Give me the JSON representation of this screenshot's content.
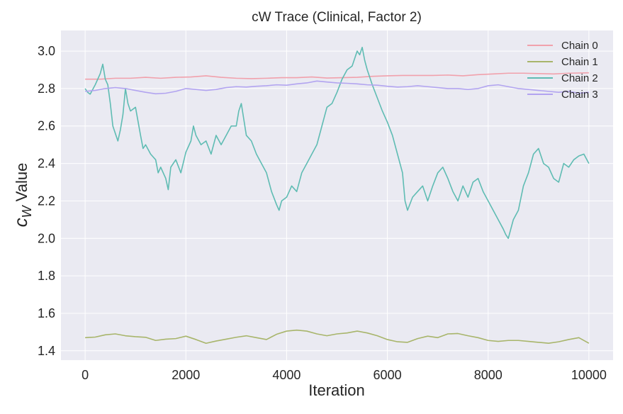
{
  "chart_data": {
    "type": "line",
    "title": "cW Trace (Clinical, Factor 2)",
    "xlabel": "Iteration",
    "ylabel_math": "c",
    "ylabel_sub": "W",
    "ylabel_text": "Value",
    "xlim": [
      -480,
      10480
    ],
    "ylim": [
      1.35,
      3.11
    ],
    "xticks": [
      0,
      2000,
      4000,
      6000,
      8000,
      10000
    ],
    "yticks": [
      1.4,
      1.6,
      1.8,
      2.0,
      2.2,
      2.4,
      2.6,
      2.8,
      3.0
    ],
    "xtick_labels": [
      "0",
      "2000",
      "4000",
      "6000",
      "8000",
      "10000"
    ],
    "ytick_labels": [
      "1.4",
      "1.6",
      "1.8",
      "2.0",
      "2.2",
      "2.4",
      "2.6",
      "2.8",
      "3.0"
    ],
    "grid": true,
    "legend_position": "top-right",
    "colors": {
      "plot_background": "#eaeaf2",
      "grid": "#ffffff"
    },
    "series": [
      {
        "name": "Chain 0",
        "color": "#f1a1ac",
        "x": [
          0,
          300,
          600,
          900,
          1200,
          1500,
          1800,
          2100,
          2400,
          2700,
          3000,
          3300,
          3600,
          3900,
          4200,
          4500,
          4800,
          5100,
          5400,
          5700,
          6000,
          6300,
          6600,
          6900,
          7200,
          7500,
          7800,
          8100,
          8400,
          8700,
          9000,
          9300,
          9600,
          10000
        ],
        "values": [
          2.85,
          2.85,
          2.855,
          2.855,
          2.86,
          2.855,
          2.86,
          2.862,
          2.868,
          2.86,
          2.855,
          2.853,
          2.855,
          2.858,
          2.858,
          2.862,
          2.856,
          2.858,
          2.86,
          2.865,
          2.868,
          2.87,
          2.87,
          2.87,
          2.872,
          2.868,
          2.874,
          2.878,
          2.882,
          2.882,
          2.88,
          2.878,
          2.882,
          2.884
        ]
      },
      {
        "name": "Chain 1",
        "color": "#a8b56b",
        "x": [
          0,
          200,
          400,
          600,
          800,
          1000,
          1200,
          1400,
          1600,
          1800,
          2000,
          2200,
          2400,
          2600,
          2800,
          3000,
          3200,
          3400,
          3600,
          3800,
          4000,
          4200,
          4400,
          4600,
          4800,
          5000,
          5200,
          5400,
          5600,
          5800,
          6000,
          6200,
          6400,
          6600,
          6800,
          7000,
          7200,
          7400,
          7600,
          7800,
          8000,
          8200,
          8400,
          8600,
          8800,
          9000,
          9200,
          9400,
          9600,
          9800,
          10000
        ],
        "values": [
          1.47,
          1.473,
          1.485,
          1.49,
          1.48,
          1.475,
          1.472,
          1.455,
          1.462,
          1.465,
          1.478,
          1.46,
          1.44,
          1.452,
          1.462,
          1.472,
          1.48,
          1.47,
          1.46,
          1.488,
          1.505,
          1.51,
          1.505,
          1.49,
          1.48,
          1.49,
          1.495,
          1.505,
          1.495,
          1.48,
          1.46,
          1.448,
          1.445,
          1.465,
          1.478,
          1.47,
          1.49,
          1.492,
          1.48,
          1.47,
          1.455,
          1.45,
          1.455,
          1.455,
          1.45,
          1.445,
          1.44,
          1.448,
          1.46,
          1.47,
          1.44
        ]
      },
      {
        "name": "Chain 2",
        "color": "#5fbcb3",
        "x": [
          0,
          50,
          100,
          200,
          300,
          350,
          400,
          450,
          500,
          550,
          600,
          650,
          700,
          750,
          800,
          850,
          900,
          1000,
          1100,
          1150,
          1200,
          1300,
          1400,
          1450,
          1500,
          1600,
          1650,
          1700,
          1800,
          1900,
          2000,
          2100,
          2150,
          2200,
          2300,
          2400,
          2500,
          2600,
          2700,
          2800,
          2900,
          3000,
          3050,
          3100,
          3200,
          3300,
          3400,
          3500,
          3600,
          3700,
          3800,
          3850,
          3900,
          4000,
          4100,
          4200,
          4300,
          4400,
          4500,
          4600,
          4700,
          4800,
          4900,
          5000,
          5100,
          5200,
          5300,
          5350,
          5400,
          5450,
          5500,
          5550,
          5600,
          5700,
          5800,
          5900,
          6000,
          6100,
          6200,
          6300,
          6350,
          6400,
          6500,
          6600,
          6700,
          6800,
          6900,
          7000,
          7100,
          7200,
          7300,
          7400,
          7500,
          7600,
          7700,
          7800,
          7900,
          8000,
          8100,
          8200,
          8300,
          8350,
          8400,
          8450,
          8500,
          8600,
          8700,
          8800,
          8900,
          9000,
          9100,
          9200,
          9300,
          9400,
          9500,
          9600,
          9700,
          9800,
          9900,
          10000
        ],
        "values": [
          2.8,
          2.78,
          2.77,
          2.82,
          2.88,
          2.93,
          2.85,
          2.82,
          2.72,
          2.6,
          2.56,
          2.52,
          2.58,
          2.66,
          2.8,
          2.72,
          2.68,
          2.7,
          2.55,
          2.48,
          2.5,
          2.45,
          2.42,
          2.35,
          2.38,
          2.32,
          2.26,
          2.38,
          2.42,
          2.35,
          2.46,
          2.52,
          2.6,
          2.55,
          2.5,
          2.52,
          2.45,
          2.55,
          2.5,
          2.55,
          2.6,
          2.6,
          2.68,
          2.72,
          2.55,
          2.52,
          2.45,
          2.4,
          2.35,
          2.25,
          2.18,
          2.15,
          2.2,
          2.22,
          2.28,
          2.25,
          2.35,
          2.4,
          2.45,
          2.5,
          2.6,
          2.7,
          2.72,
          2.78,
          2.85,
          2.9,
          2.92,
          2.96,
          3.0,
          2.98,
          3.02,
          2.95,
          2.9,
          2.82,
          2.75,
          2.68,
          2.62,
          2.55,
          2.45,
          2.35,
          2.2,
          2.15,
          2.22,
          2.25,
          2.28,
          2.2,
          2.28,
          2.35,
          2.38,
          2.32,
          2.25,
          2.2,
          2.28,
          2.22,
          2.3,
          2.32,
          2.25,
          2.2,
          2.15,
          2.1,
          2.05,
          2.02,
          2.0,
          2.05,
          2.1,
          2.15,
          2.28,
          2.35,
          2.45,
          2.48,
          2.4,
          2.38,
          2.32,
          2.3,
          2.4,
          2.38,
          2.42,
          2.44,
          2.45,
          2.4
        ]
      },
      {
        "name": "Chain 3",
        "color": "#b2a4f0",
        "x": [
          0,
          200,
          400,
          600,
          800,
          1000,
          1200,
          1400,
          1600,
          1800,
          2000,
          2200,
          2400,
          2600,
          2800,
          3000,
          3200,
          3400,
          3600,
          3800,
          4000,
          4200,
          4400,
          4600,
          4800,
          5000,
          5200,
          5400,
          5600,
          5800,
          6000,
          6200,
          6400,
          6600,
          6800,
          7000,
          7200,
          7400,
          7600,
          7800,
          8000,
          8200,
          8400,
          8600,
          8800,
          9000,
          9200,
          9400,
          9600,
          9800,
          10000
        ],
        "values": [
          2.785,
          2.79,
          2.8,
          2.805,
          2.8,
          2.79,
          2.78,
          2.772,
          2.775,
          2.785,
          2.8,
          2.795,
          2.79,
          2.795,
          2.805,
          2.81,
          2.808,
          2.812,
          2.815,
          2.82,
          2.818,
          2.825,
          2.83,
          2.84,
          2.835,
          2.83,
          2.828,
          2.825,
          2.82,
          2.818,
          2.812,
          2.808,
          2.81,
          2.815,
          2.81,
          2.805,
          2.8,
          2.8,
          2.795,
          2.8,
          2.815,
          2.82,
          2.81,
          2.8,
          2.795,
          2.79,
          2.785,
          2.78,
          2.785,
          2.775,
          2.78
        ]
      }
    ]
  }
}
